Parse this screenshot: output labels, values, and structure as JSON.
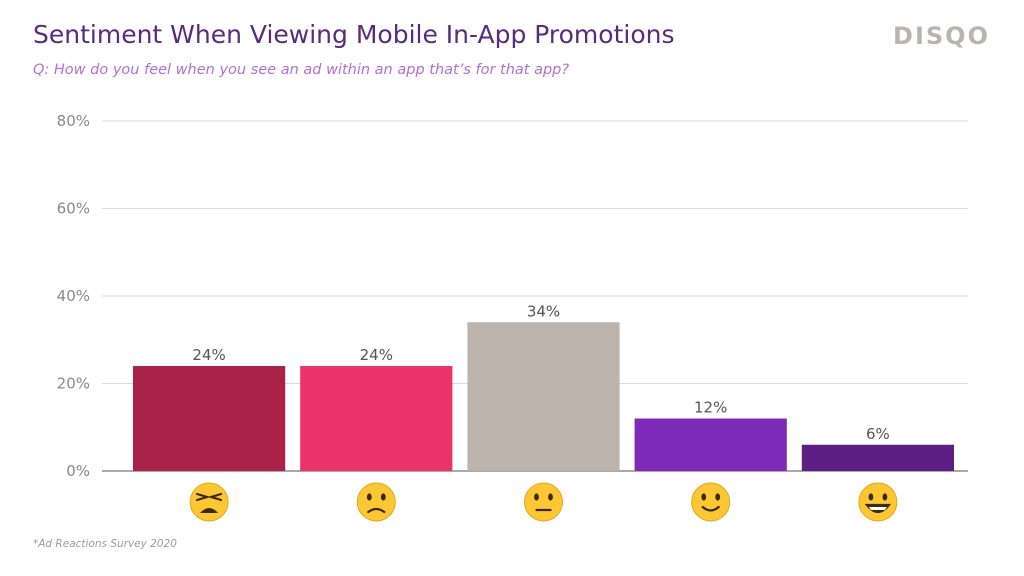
{
  "title": "Sentiment When Viewing Mobile In-App Promotions",
  "subtitle": "Q: How do you feel when you see an ad within an app that’s for that app?",
  "logo": "DISQO",
  "footnote": "*Ad Reactions Survey 2020",
  "chart_data": {
    "type": "bar",
    "categories": [
      "weary-face-icon",
      "slightly-frowning-face-icon",
      "neutral-face-icon",
      "slightly-smiling-face-icon",
      "grinning-face-icon"
    ],
    "values": [
      24,
      24,
      34,
      12,
      6
    ],
    "data_labels": [
      "24%",
      "24%",
      "34%",
      "12%",
      "6%"
    ],
    "colors": [
      "#ab2249",
      "#eb3369",
      "#bcb3ac",
      "#7c2ab7",
      "#5c1d85"
    ],
    "ylim": [
      0,
      80
    ],
    "yticks": [
      0,
      20,
      40,
      60,
      80
    ],
    "ytick_labels": [
      "0%",
      "20%",
      "40%",
      "60%",
      "80%"
    ],
    "grid": true,
    "legend": "none"
  }
}
